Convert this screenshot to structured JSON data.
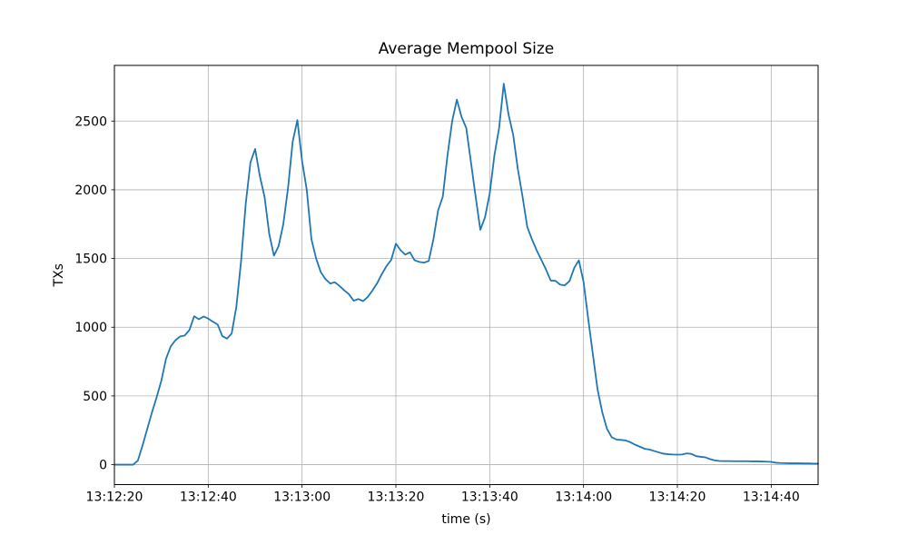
{
  "chart_data": {
    "type": "line",
    "title": "Average Mempool Size",
    "xlabel": "time (s)",
    "ylabel": "TXs",
    "grid": true,
    "legend": "none",
    "line_color": "#1f77b4",
    "grid_color": "#b0b0b0",
    "spine_color": "#000000",
    "x_tick_labels": [
      "13:12:20",
      "13:12:40",
      "13:13:00",
      "13:13:20",
      "13:13:40",
      "13:14:00",
      "13:14:20",
      "13:14:40"
    ],
    "x_tick_seconds": [
      0,
      20,
      40,
      60,
      80,
      100,
      120,
      140
    ],
    "y_ticks": [
      0,
      500,
      1000,
      1500,
      2000,
      2500
    ],
    "xlim_seconds": [
      0,
      150
    ],
    "ylim": [
      -145,
      2905
    ],
    "series": [
      {
        "name": "average-mempool-size",
        "start_time_label": "13:12:20",
        "sample_interval_s": 1,
        "values": [
          0,
          0,
          0,
          0,
          0,
          30,
          140,
          260,
          380,
          490,
          610,
          770,
          860,
          905,
          933,
          940,
          980,
          1080,
          1058,
          1078,
          1063,
          1040,
          1020,
          935,
          917,
          955,
          1150,
          1480,
          1900,
          2200,
          2297,
          2100,
          1950,
          1680,
          1521,
          1590,
          1750,
          2010,
          2350,
          2507,
          2210,
          2000,
          1640,
          1500,
          1400,
          1350,
          1318,
          1327,
          1300,
          1268,
          1240,
          1193,
          1205,
          1190,
          1220,
          1267,
          1320,
          1386,
          1445,
          1490,
          1608,
          1560,
          1528,
          1545,
          1487,
          1475,
          1470,
          1482,
          1640,
          1850,
          1950,
          2250,
          2500,
          2656,
          2530,
          2450,
          2200,
          1950,
          1709,
          1800,
          1973,
          2250,
          2450,
          2772,
          2550,
          2400,
          2150,
          1950,
          1730,
          1640,
          1560,
          1490,
          1420,
          1340,
          1338,
          1310,
          1305,
          1335,
          1430,
          1487,
          1330,
          1060,
          800,
          545,
          380,
          260,
          200,
          183,
          180,
          176,
          163,
          145,
          131,
          116,
          110,
          100,
          90,
          80,
          76,
          74,
          73,
          74,
          82,
          78,
          62,
          57,
          53,
          40,
          31,
          27,
          26,
          26,
          25,
          25,
          25,
          25,
          24,
          24,
          23,
          22,
          20,
          14,
          12,
          11,
          10,
          10,
          10,
          9,
          9,
          8,
          8
        ]
      }
    ]
  }
}
